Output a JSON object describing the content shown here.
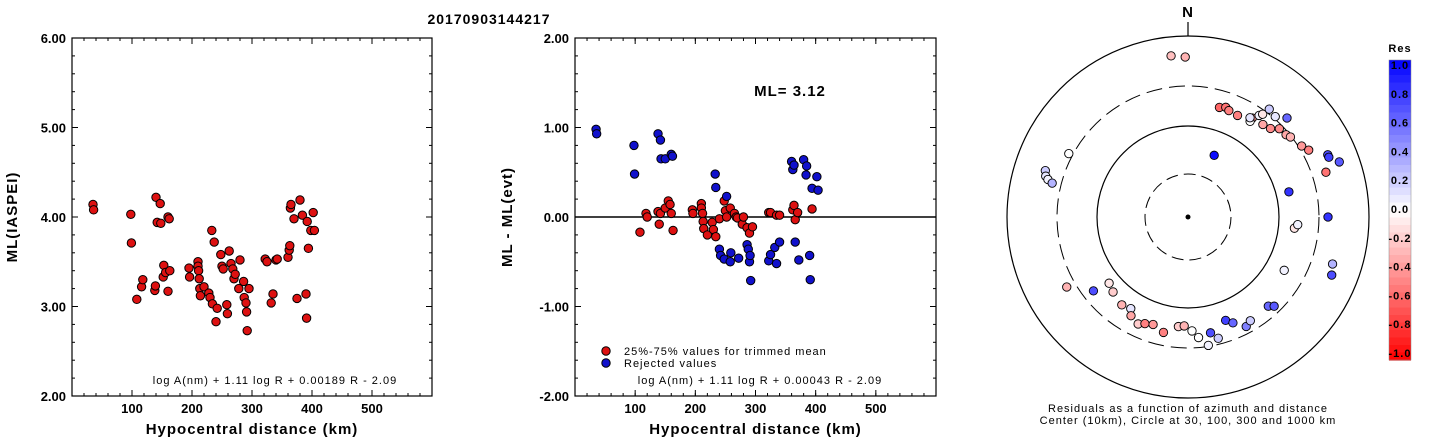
{
  "title": "20170903144217",
  "chart_data": [
    {
      "type": "scatter",
      "name": "ml-vs-distance",
      "xlabel": "Hypocentral distance (km)",
      "ylabel": "ML(IASPEI)",
      "xlim": [
        0,
        600
      ],
      "ylim": [
        2.0,
        6.0
      ],
      "xticks": [
        "100",
        "200",
        "300",
        "400",
        "500"
      ],
      "yticks": [
        "2.00",
        "3.00",
        "4.00",
        "5.00",
        "6.00"
      ],
      "formula": "log A(nm) + 1.11 log R + 0.00189 R - 2.09",
      "color": "#dd1111",
      "points": [
        [
          35,
          4.14
        ],
        [
          36,
          4.08
        ],
        [
          98,
          4.03
        ],
        [
          99,
          3.71
        ],
        [
          108,
          3.08
        ],
        [
          116,
          3.22
        ],
        [
          118,
          3.3
        ],
        [
          138,
          3.18
        ],
        [
          139,
          3.23
        ],
        [
          140,
          4.22
        ],
        [
          142,
          3.94
        ],
        [
          147,
          4.15
        ],
        [
          148,
          3.93
        ],
        [
          152,
          3.33
        ],
        [
          153,
          3.46
        ],
        [
          156,
          3.38
        ],
        [
          160,
          3.17
        ],
        [
          160,
          4.0
        ],
        [
          162,
          3.98
        ],
        [
          163,
          3.4
        ],
        [
          195,
          3.43
        ],
        [
          196,
          3.33
        ],
        [
          210,
          3.5
        ],
        [
          210,
          3.45
        ],
        [
          211,
          3.4
        ],
        [
          212,
          3.31
        ],
        [
          213,
          3.2
        ],
        [
          214,
          3.12
        ],
        [
          220,
          3.22
        ],
        [
          228,
          3.15
        ],
        [
          230,
          3.1
        ],
        [
          233,
          3.85
        ],
        [
          234,
          3.03
        ],
        [
          237,
          3.72
        ],
        [
          240,
          2.83
        ],
        [
          242,
          2.98
        ],
        [
          248,
          3.58
        ],
        [
          250,
          3.45
        ],
        [
          252,
          3.42
        ],
        [
          258,
          3.02
        ],
        [
          259,
          2.92
        ],
        [
          262,
          3.62
        ],
        [
          265,
          3.48
        ],
        [
          268,
          3.42
        ],
        [
          270,
          3.31
        ],
        [
          272,
          3.36
        ],
        [
          278,
          3.2
        ],
        [
          280,
          3.52
        ],
        [
          286,
          3.28
        ],
        [
          287,
          3.1
        ],
        [
          290,
          3.04
        ],
        [
          291,
          2.94
        ],
        [
          292,
          2.73
        ],
        [
          295,
          3.2
        ],
        [
          322,
          3.53
        ],
        [
          325,
          3.5
        ],
        [
          332,
          3.04
        ],
        [
          335,
          3.14
        ],
        [
          340,
          3.52
        ],
        [
          342,
          3.53
        ],
        [
          360,
          3.55
        ],
        [
          362,
          3.63
        ],
        [
          363,
          3.68
        ],
        [
          364,
          4.1
        ],
        [
          365,
          4.14
        ],
        [
          370,
          3.98
        ],
        [
          375,
          3.09
        ],
        [
          380,
          4.19
        ],
        [
          384,
          4.02
        ],
        [
          390,
          3.14
        ],
        [
          391,
          2.87
        ],
        [
          392,
          3.95
        ],
        [
          394,
          3.65
        ],
        [
          398,
          3.85
        ],
        [
          402,
          4.05
        ],
        [
          404,
          3.85
        ]
      ]
    },
    {
      "type": "scatter",
      "name": "residual-vs-distance",
      "xlabel": "Hypocentral distance (km)",
      "ylabel": "ML - ML(evt)",
      "xlim": [
        0,
        600
      ],
      "ylim": [
        -2.0,
        2.0
      ],
      "xticks": [
        "100",
        "200",
        "300",
        "400",
        "500"
      ],
      "yticks": [
        "-2.00",
        "-1.00",
        "0.00",
        "1.00",
        "2.00"
      ],
      "annotation": "ML= 3.12",
      "formula": "log A(nm) + 1.11 log R + 0.00043 R - 2.09",
      "series": [
        {
          "name": "25%-75% values for trimmed mean",
          "color": "#dd1111",
          "points": [
            [
              108,
              -0.17
            ],
            [
              118,
              0.04
            ],
            [
              120,
              0.0
            ],
            [
              138,
              0.06
            ],
            [
              140,
              -0.08
            ],
            [
              142,
              0.04
            ],
            [
              150,
              0.1
            ],
            [
              155,
              0.18
            ],
            [
              158,
              0.14
            ],
            [
              160,
              0.04
            ],
            [
              163,
              -0.15
            ],
            [
              195,
              0.08
            ],
            [
              196,
              0.04
            ],
            [
              210,
              0.15
            ],
            [
              210,
              0.1
            ],
            [
              212,
              0.04
            ],
            [
              213,
              -0.05
            ],
            [
              214,
              -0.13
            ],
            [
              220,
              -0.2
            ],
            [
              228,
              -0.06
            ],
            [
              230,
              -0.14
            ],
            [
              234,
              -0.22
            ],
            [
              240,
              -0.02
            ],
            [
              248,
              0.18
            ],
            [
              250,
              0.07
            ],
            [
              252,
              0.0
            ],
            [
              258,
              0.1
            ],
            [
              265,
              0.04
            ],
            [
              268,
              0.0
            ],
            [
              270,
              -0.01
            ],
            [
              278,
              -0.08
            ],
            [
              280,
              0.0
            ],
            [
              286,
              -0.12
            ],
            [
              290,
              -0.18
            ],
            [
              295,
              -0.11
            ],
            [
              322,
              0.05
            ],
            [
              325,
              0.05
            ],
            [
              335,
              0.02
            ],
            [
              340,
              0.02
            ],
            [
              362,
              0.08
            ],
            [
              364,
              0.13
            ],
            [
              366,
              -0.03
            ],
            [
              370,
              0.05
            ],
            [
              394,
              0.09
            ]
          ]
        },
        {
          "name": "Rejected values",
          "color": "#1111cc",
          "points": [
            [
              35,
              0.98
            ],
            [
              36,
              0.93
            ],
            [
              98,
              0.8
            ],
            [
              99,
              0.48
            ],
            [
              138,
              0.93
            ],
            [
              142,
              0.86
            ],
            [
              143,
              0.65
            ],
            [
              150,
              0.65
            ],
            [
              160,
              0.7
            ],
            [
              162,
              0.68
            ],
            [
              233,
              0.48
            ],
            [
              234,
              0.33
            ],
            [
              240,
              -0.36
            ],
            [
              242,
              -0.43
            ],
            [
              248,
              -0.47
            ],
            [
              252,
              0.23
            ],
            [
              258,
              -0.5
            ],
            [
              259,
              -0.4
            ],
            [
              272,
              -0.46
            ],
            [
              286,
              -0.31
            ],
            [
              288,
              -0.36
            ],
            [
              290,
              -0.5
            ],
            [
              291,
              -0.43
            ],
            [
              292,
              -0.71
            ],
            [
              322,
              -0.49
            ],
            [
              325,
              -0.42
            ],
            [
              332,
              -0.34
            ],
            [
              335,
              -0.52
            ],
            [
              340,
              -0.28
            ],
            [
              360,
              0.62
            ],
            [
              362,
              0.53
            ],
            [
              364,
              0.58
            ],
            [
              366,
              -0.28
            ],
            [
              372,
              -0.48
            ],
            [
              380,
              0.64
            ],
            [
              384,
              0.47
            ],
            [
              385,
              0.57
            ],
            [
              390,
              -0.43
            ],
            [
              391,
              -0.7
            ],
            [
              394,
              0.32
            ],
            [
              402,
              0.45
            ],
            [
              404,
              0.3
            ]
          ]
        }
      ]
    },
    {
      "type": "scatter",
      "name": "azimuth-residual-map",
      "north_label": "N",
      "caption_line1": "Residuals as a function of azimuth and distance",
      "caption_line2": "Center (10km), Circle at 30, 100, 300 and 1000 km",
      "colorbar_title": "Res",
      "colorbar_ticks": [
        "1.0",
        "0.8",
        "0.6",
        "0.4",
        "0.2",
        "0.0",
        "-0.2",
        "-0.4",
        "-0.6",
        "-0.8",
        "-1.0"
      ],
      "stations": [
        [
          -6,
          162,
          -0.25
        ],
        [
          -1,
          160,
          -0.3
        ],
        [
          16,
          114,
          -0.6
        ],
        [
          19,
          116,
          -0.55
        ],
        [
          21,
          114,
          -0.5
        ],
        [
          26,
          113,
          -0.5
        ],
        [
          33,
          118,
          -0.4
        ],
        [
          39,
          119,
          -0.35
        ],
        [
          43,
          121,
          -0.45
        ],
        [
          46,
          127,
          -0.45
        ],
        [
          50,
          128,
          -0.35
        ],
        [
          52,
          130,
          -0.3
        ],
        [
          58,
          134,
          -0.4
        ],
        [
          61,
          138,
          -0.5
        ],
        [
          72,
          145,
          -0.55
        ],
        [
          33,
          114,
          0.0
        ],
        [
          32,
          117,
          0.1
        ],
        [
          35,
          124,
          0.05
        ],
        [
          36,
          127,
          -0.1
        ],
        [
          41,
          133,
          0.1
        ],
        [
          37,
          135,
          0.2
        ],
        [
          45,
          140,
          0.6
        ],
        [
          66,
          153,
          0.7
        ],
        [
          67,
          153,
          0.75
        ],
        [
          70,
          161,
          0.65
        ],
        [
          76,
          104,
          0.8
        ],
        [
          -72,
          150,
          0.2
        ],
        [
          -74,
          148,
          0.1
        ],
        [
          -75,
          145,
          0.05
        ],
        [
          -76,
          140,
          0.3
        ],
        [
          -62,
          135,
          0.0
        ],
        [
          -120,
          140,
          -0.3
        ],
        [
          -128,
          120,
          0.7
        ],
        [
          -130,
          103,
          -0.1
        ],
        [
          -135,
          106,
          -0.2
        ],
        [
          -143,
          110,
          -0.3
        ],
        [
          -148,
          108,
          0.1
        ],
        [
          -150,
          114,
          -0.35
        ],
        [
          -155,
          118,
          -0.2
        ],
        [
          -158,
          115,
          -0.5
        ],
        [
          -162,
          113,
          -0.4
        ],
        [
          -168,
          118,
          -0.5
        ],
        [
          -175,
          110,
          -0.2
        ],
        [
          -178,
          109,
          -0.3
        ],
        [
          178,
          114,
          0.0
        ],
        [
          175,
          121,
          0.0
        ],
        [
          171,
          130,
          0.05
        ],
        [
          169,
          118,
          0.7
        ],
        [
          166,
          125,
          0.2
        ],
        [
          160,
          110,
          0.75
        ],
        [
          157,
          115,
          0.6
        ],
        [
          152,
          124,
          0.5
        ],
        [
          149,
          121,
          0.2
        ],
        [
          138,
          120,
          0.6
        ],
        [
          136,
          124,
          0.65
        ],
        [
          119,
          110,
          0.05
        ],
        [
          108,
          152,
          0.3
        ],
        [
          96,
          107,
          -0.1
        ],
        [
          94,
          110,
          0.05
        ],
        [
          90,
          140,
          0.8
        ],
        [
          112,
          155,
          0.7
        ],
        [
          23,
          67,
          0.95
        ]
      ]
    }
  ]
}
